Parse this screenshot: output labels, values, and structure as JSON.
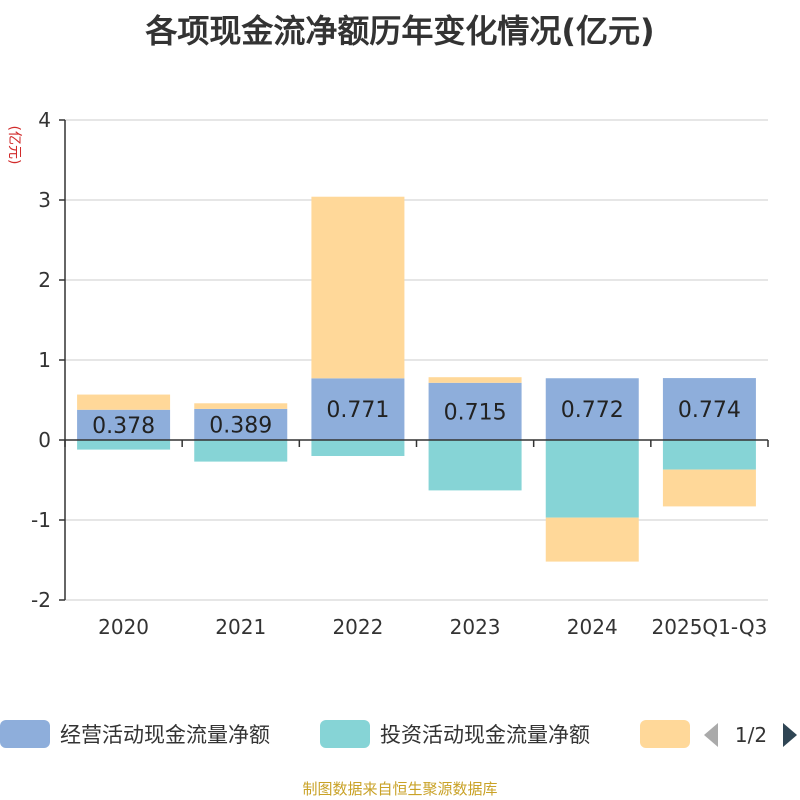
{
  "chart_data": {
    "type": "bar",
    "stacked": true,
    "title": "各项现金流净额历年变化情况(亿元)",
    "ylabel": "(亿元)",
    "xlabel": "",
    "ylim": [
      -2,
      4
    ],
    "yticks": [
      -2,
      -1,
      0,
      1,
      2,
      3,
      4
    ],
    "grid": true,
    "categories": [
      "2020",
      "2021",
      "2022",
      "2023",
      "2024",
      "2025Q1-Q3"
    ],
    "series": [
      {
        "name": "经营活动现金流量净额",
        "color": "#8eaedb",
        "values": [
          0.378,
          0.389,
          0.771,
          0.715,
          0.772,
          0.774
        ],
        "labels": [
          "0.378",
          "0.389",
          "0.771",
          "0.715",
          "0.772",
          "0.774"
        ]
      },
      {
        "name": "投资活动现金流量净额",
        "color": "#86d4d6",
        "values": [
          -0.12,
          -0.27,
          -0.2,
          -0.63,
          -0.97,
          -0.37
        ]
      },
      {
        "name": "",
        "color": "#ffd899",
        "values": [
          0.19,
          0.07,
          2.27,
          0.07,
          -0.55,
          -0.46
        ]
      }
    ],
    "legend": {
      "placement": "bottom",
      "page": "1/2"
    }
  },
  "source": "制图数据来自恒生聚源数据库"
}
